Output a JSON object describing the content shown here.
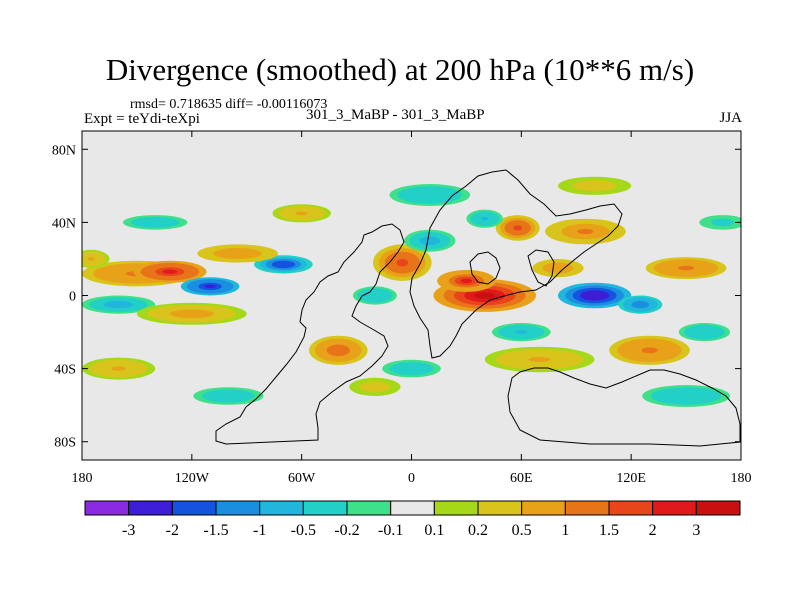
{
  "header": {
    "title": "Divergence (smoothed) at 200 hPa (10**6 m/s)",
    "stats": "rmsd= 0.718635 diff= -0.00116073",
    "expt": "Expt = teYdi-teXpi",
    "runs": "301_3_MaBP - 301_3_MaBP",
    "season": "JJA"
  },
  "chart_data": {
    "type": "heatmap",
    "title": "Divergence (smoothed) at 200 hPa (10**6 m/s)",
    "units": "10**6 m/s",
    "projection": "cylindrical-equidistant",
    "xlim": [
      -180,
      180
    ],
    "ylim": [
      -90,
      90
    ],
    "x_ticks": [
      {
        "value": -180,
        "label": "180"
      },
      {
        "value": -120,
        "label": "120W"
      },
      {
        "value": -60,
        "label": "60W"
      },
      {
        "value": 0,
        "label": "0"
      },
      {
        "value": 60,
        "label": "60E"
      },
      {
        "value": 120,
        "label": "120E"
      },
      {
        "value": 180,
        "label": "180"
      }
    ],
    "y_ticks": [
      {
        "value": 80,
        "label": "80N"
      },
      {
        "value": 40,
        "label": "40N"
      },
      {
        "value": 0,
        "label": "0"
      },
      {
        "value": -40,
        "label": "40S"
      },
      {
        "value": -80,
        "label": "80S"
      }
    ],
    "colorbar": {
      "levels": [
        "-3",
        "-2",
        "-1.5",
        "-1",
        "-0.5",
        "-0.2",
        "-0.1",
        "0.1",
        "0.2",
        "0.5",
        "1",
        "1.5",
        "2",
        "3"
      ],
      "colors": [
        "#8a2be2",
        "#3d1dd6",
        "#1452e0",
        "#1a8fe0",
        "#21b6dc",
        "#23d0c8",
        "#3ee08a",
        "#e8e8e8",
        "#a6d81a",
        "#d8c41a",
        "#e8a21a",
        "#e8741a",
        "#e8461a",
        "#e01a1a",
        "#c81010"
      ]
    },
    "features": [
      {
        "lon": -132,
        "lat": 13,
        "value": 2.2,
        "note": "positive maximum, NE tropical Pacific"
      },
      {
        "lon": -110,
        "lat": 5,
        "value": -2.4,
        "note": "negative minimum, E tropical Pacific"
      },
      {
        "lon": -70,
        "lat": 17,
        "value": -2.0,
        "note": "negative minimum, Caribbean"
      },
      {
        "lon": -5,
        "lat": 18,
        "value": 1.8,
        "note": "positive maximum, W Africa"
      },
      {
        "lon": 40,
        "lat": 0,
        "value": 3.0,
        "note": "strong positive maximum, E Africa / W Indian Ocean"
      },
      {
        "lon": 100,
        "lat": 0,
        "value": -2.6,
        "note": "strong negative minimum, maritime continent"
      },
      {
        "lon": 58,
        "lat": 37,
        "value": 1.6,
        "note": "positive maximum, central Asia"
      },
      {
        "lon": 150,
        "lat": 15,
        "value": 1.2,
        "note": "positive band, W Pacific"
      },
      {
        "lon": -40,
        "lat": -30,
        "value": 1.3,
        "note": "positive patch, S America / S Atlantic"
      },
      {
        "lon": 130,
        "lat": -30,
        "value": 1.2,
        "note": "positive patch, Australia"
      }
    ]
  }
}
